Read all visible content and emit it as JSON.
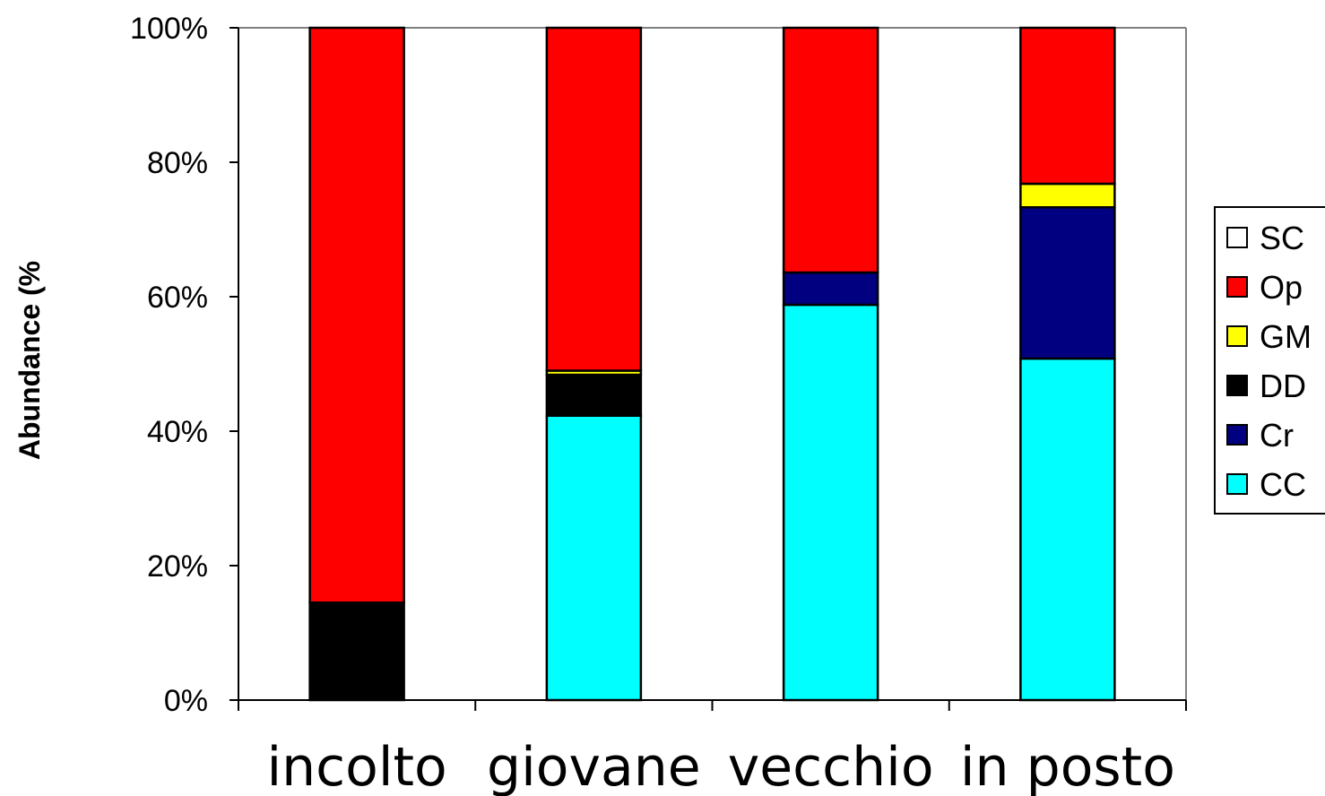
{
  "chart_data": {
    "type": "bar",
    "stacked": true,
    "normalized": true,
    "categories": [
      "incolto",
      "giovane",
      "vecchio",
      "in posto"
    ],
    "series": [
      {
        "name": "CC",
        "color": "#00ffff",
        "values": [
          0,
          42.3,
          58.8,
          50.8
        ]
      },
      {
        "name": "Cr",
        "color": "#000080",
        "values": [
          0,
          0,
          4.8,
          22.5
        ]
      },
      {
        "name": "DD",
        "color": "#000000",
        "values": [
          14.5,
          6.1,
          0,
          0
        ]
      },
      {
        "name": "GM",
        "color": "#ffff00",
        "values": [
          0,
          0.6,
          0,
          3.5
        ]
      },
      {
        "name": "Op",
        "color": "#ff0000",
        "values": [
          85.5,
          51.0,
          36.4,
          23.2
        ]
      },
      {
        "name": "SC",
        "color": "#ffffff",
        "values": [
          0,
          0,
          0,
          0
        ]
      }
    ],
    "title": "",
    "xlabel": "",
    "ylabel": "Abundance (%",
    "ylim": [
      0,
      100
    ],
    "yticks": [
      "0%",
      "20%",
      "40%",
      "60%",
      "80%",
      "100%"
    ],
    "legend": {
      "placement": "right",
      "order": [
        "SC",
        "Op",
        "GM",
        "DD",
        "Cr",
        "CC"
      ]
    },
    "grid": false
  }
}
